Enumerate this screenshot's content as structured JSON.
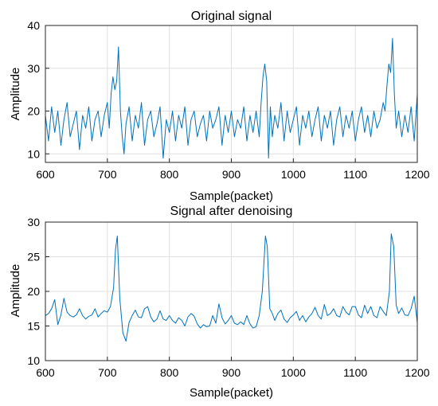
{
  "chart_data": [
    {
      "type": "line",
      "title": "Original signal",
      "xlabel": "Sample(packet)",
      "ylabel": "Amplitude",
      "xlim": [
        600,
        1200
      ],
      "ylim": [
        8,
        40
      ],
      "xticks": [
        600,
        700,
        800,
        900,
        1000,
        1100,
        1200
      ],
      "yticks": [
        10,
        20,
        30,
        40
      ],
      "grid": true,
      "color": "#0072BD",
      "series": [
        {
          "x": [
            600,
            605,
            610,
            615,
            620,
            625,
            630,
            635,
            640,
            645,
            650,
            655,
            660,
            665,
            670,
            675,
            680,
            685,
            690,
            695,
            700,
            703,
            706,
            709,
            712,
            715,
            718,
            721,
            724,
            727,
            730,
            735,
            740,
            745,
            750,
            755,
            760,
            765,
            770,
            775,
            780,
            785,
            790,
            795,
            800,
            805,
            810,
            815,
            820,
            825,
            830,
            835,
            840,
            845,
            850,
            855,
            860,
            865,
            870,
            875,
            880,
            885,
            890,
            895,
            900,
            905,
            910,
            915,
            920,
            925,
            930,
            935,
            940,
            945,
            948,
            951,
            954,
            957,
            960,
            963,
            966,
            970,
            975,
            980,
            985,
            990,
            995,
            1000,
            1005,
            1010,
            1015,
            1020,
            1025,
            1030,
            1035,
            1040,
            1045,
            1050,
            1055,
            1060,
            1065,
            1070,
            1075,
            1080,
            1085,
            1090,
            1095,
            1100,
            1105,
            1110,
            1115,
            1120,
            1125,
            1130,
            1135,
            1140,
            1145,
            1148,
            1151,
            1154,
            1157,
            1160,
            1163,
            1166,
            1170,
            1175,
            1180,
            1185,
            1190,
            1195,
            1200
          ],
          "y": [
            19,
            13,
            21,
            15,
            20,
            12,
            18,
            22,
            14,
            17,
            20,
            11,
            19,
            16,
            21,
            13,
            18,
            20,
            14,
            19,
            22,
            16,
            24,
            28,
            25,
            27,
            35,
            20,
            14,
            10,
            17,
            21,
            13,
            19,
            16,
            22,
            12,
            18,
            20,
            14,
            17,
            21,
            9,
            18,
            15,
            20,
            13,
            19,
            16,
            21,
            12,
            18,
            20,
            14,
            17,
            19,
            13,
            20,
            16,
            18,
            21,
            12,
            19,
            15,
            20,
            14,
            18,
            16,
            21,
            13,
            19,
            15,
            20,
            14,
            22,
            28,
            31,
            27,
            9,
            21,
            14,
            19,
            16,
            22,
            13,
            20,
            15,
            18,
            21,
            12,
            19,
            16,
            20,
            14,
            18,
            21,
            13,
            19,
            16,
            20,
            12,
            18,
            21,
            14,
            19,
            16,
            20,
            13,
            18,
            21,
            15,
            19,
            14,
            20,
            16,
            18,
            22,
            20,
            26,
            31,
            29,
            37,
            24,
            16,
            20,
            14,
            19,
            15,
            21,
            13,
            24
          ]
        }
      ]
    },
    {
      "type": "line",
      "title": "Signal after denoising",
      "xlabel": "Sample(packet)",
      "ylabel": "Amplitude",
      "xlim": [
        600,
        1200
      ],
      "ylim": [
        10,
        30
      ],
      "xticks": [
        600,
        700,
        800,
        900,
        1000,
        1100,
        1200
      ],
      "yticks": [
        10,
        15,
        20,
        25,
        30
      ],
      "grid": true,
      "color": "#0072BD",
      "series": [
        {
          "x": [
            600,
            605,
            610,
            615,
            620,
            625,
            630,
            635,
            640,
            645,
            650,
            655,
            660,
            665,
            670,
            675,
            680,
            685,
            690,
            695,
            700,
            705,
            710,
            713,
            716,
            720,
            725,
            730,
            735,
            740,
            745,
            750,
            755,
            760,
            765,
            770,
            775,
            780,
            785,
            790,
            795,
            800,
            805,
            810,
            815,
            820,
            825,
            830,
            835,
            840,
            845,
            850,
            855,
            860,
            865,
            870,
            875,
            880,
            885,
            890,
            895,
            900,
            905,
            910,
            915,
            920,
            925,
            930,
            935,
            940,
            945,
            950,
            955,
            958,
            962,
            966,
            970,
            975,
            980,
            985,
            990,
            995,
            1000,
            1005,
            1010,
            1015,
            1020,
            1025,
            1030,
            1035,
            1040,
            1045,
            1050,
            1055,
            1060,
            1065,
            1070,
            1075,
            1080,
            1085,
            1090,
            1095,
            1100,
            1105,
            1110,
            1115,
            1120,
            1125,
            1130,
            1135,
            1140,
            1145,
            1150,
            1155,
            1158,
            1162,
            1166,
            1170,
            1175,
            1180,
            1185,
            1190,
            1195,
            1200
          ],
          "y": [
            16.5,
            16.8,
            17.5,
            18.8,
            15.2,
            16.6,
            19.0,
            17.0,
            16.5,
            16.3,
            16.6,
            17.5,
            16.5,
            16.0,
            16.4,
            16.6,
            17.5,
            16.3,
            16.8,
            17.2,
            17.0,
            17.8,
            20.5,
            26.0,
            28.0,
            19.0,
            14.0,
            12.8,
            15.5,
            16.5,
            17.3,
            16.3,
            16.2,
            17.5,
            17.8,
            16.3,
            15.6,
            16.0,
            17.2,
            16.0,
            15.8,
            16.5,
            15.8,
            15.4,
            16.2,
            15.8,
            15.0,
            16.3,
            16.8,
            16.4,
            15.3,
            14.7,
            15.2,
            14.9,
            15.0,
            16.5,
            15.4,
            18.2,
            16.2,
            15.3,
            15.8,
            16.5,
            15.4,
            15.2,
            15.6,
            15.2,
            16.5,
            15.3,
            14.7,
            14.9,
            16.5,
            20.0,
            28.0,
            26.5,
            17.5,
            16.8,
            15.8,
            16.8,
            17.3,
            16.0,
            15.5,
            16.2,
            16.6,
            17.1,
            15.8,
            16.5,
            15.6,
            16.3,
            16.8,
            17.7,
            16.5,
            16.0,
            18.1,
            16.5,
            16.8,
            17.5,
            16.5,
            16.3,
            17.8,
            17.0,
            16.6,
            17.8,
            17.8,
            16.6,
            16.2,
            18.0,
            16.8,
            17.8,
            16.5,
            16.2,
            17.8,
            17.1,
            16.5,
            20.0,
            28.3,
            26.5,
            18.0,
            16.8,
            17.6,
            16.6,
            16.5,
            17.5,
            19.3,
            15.5
          ]
        }
      ]
    }
  ]
}
